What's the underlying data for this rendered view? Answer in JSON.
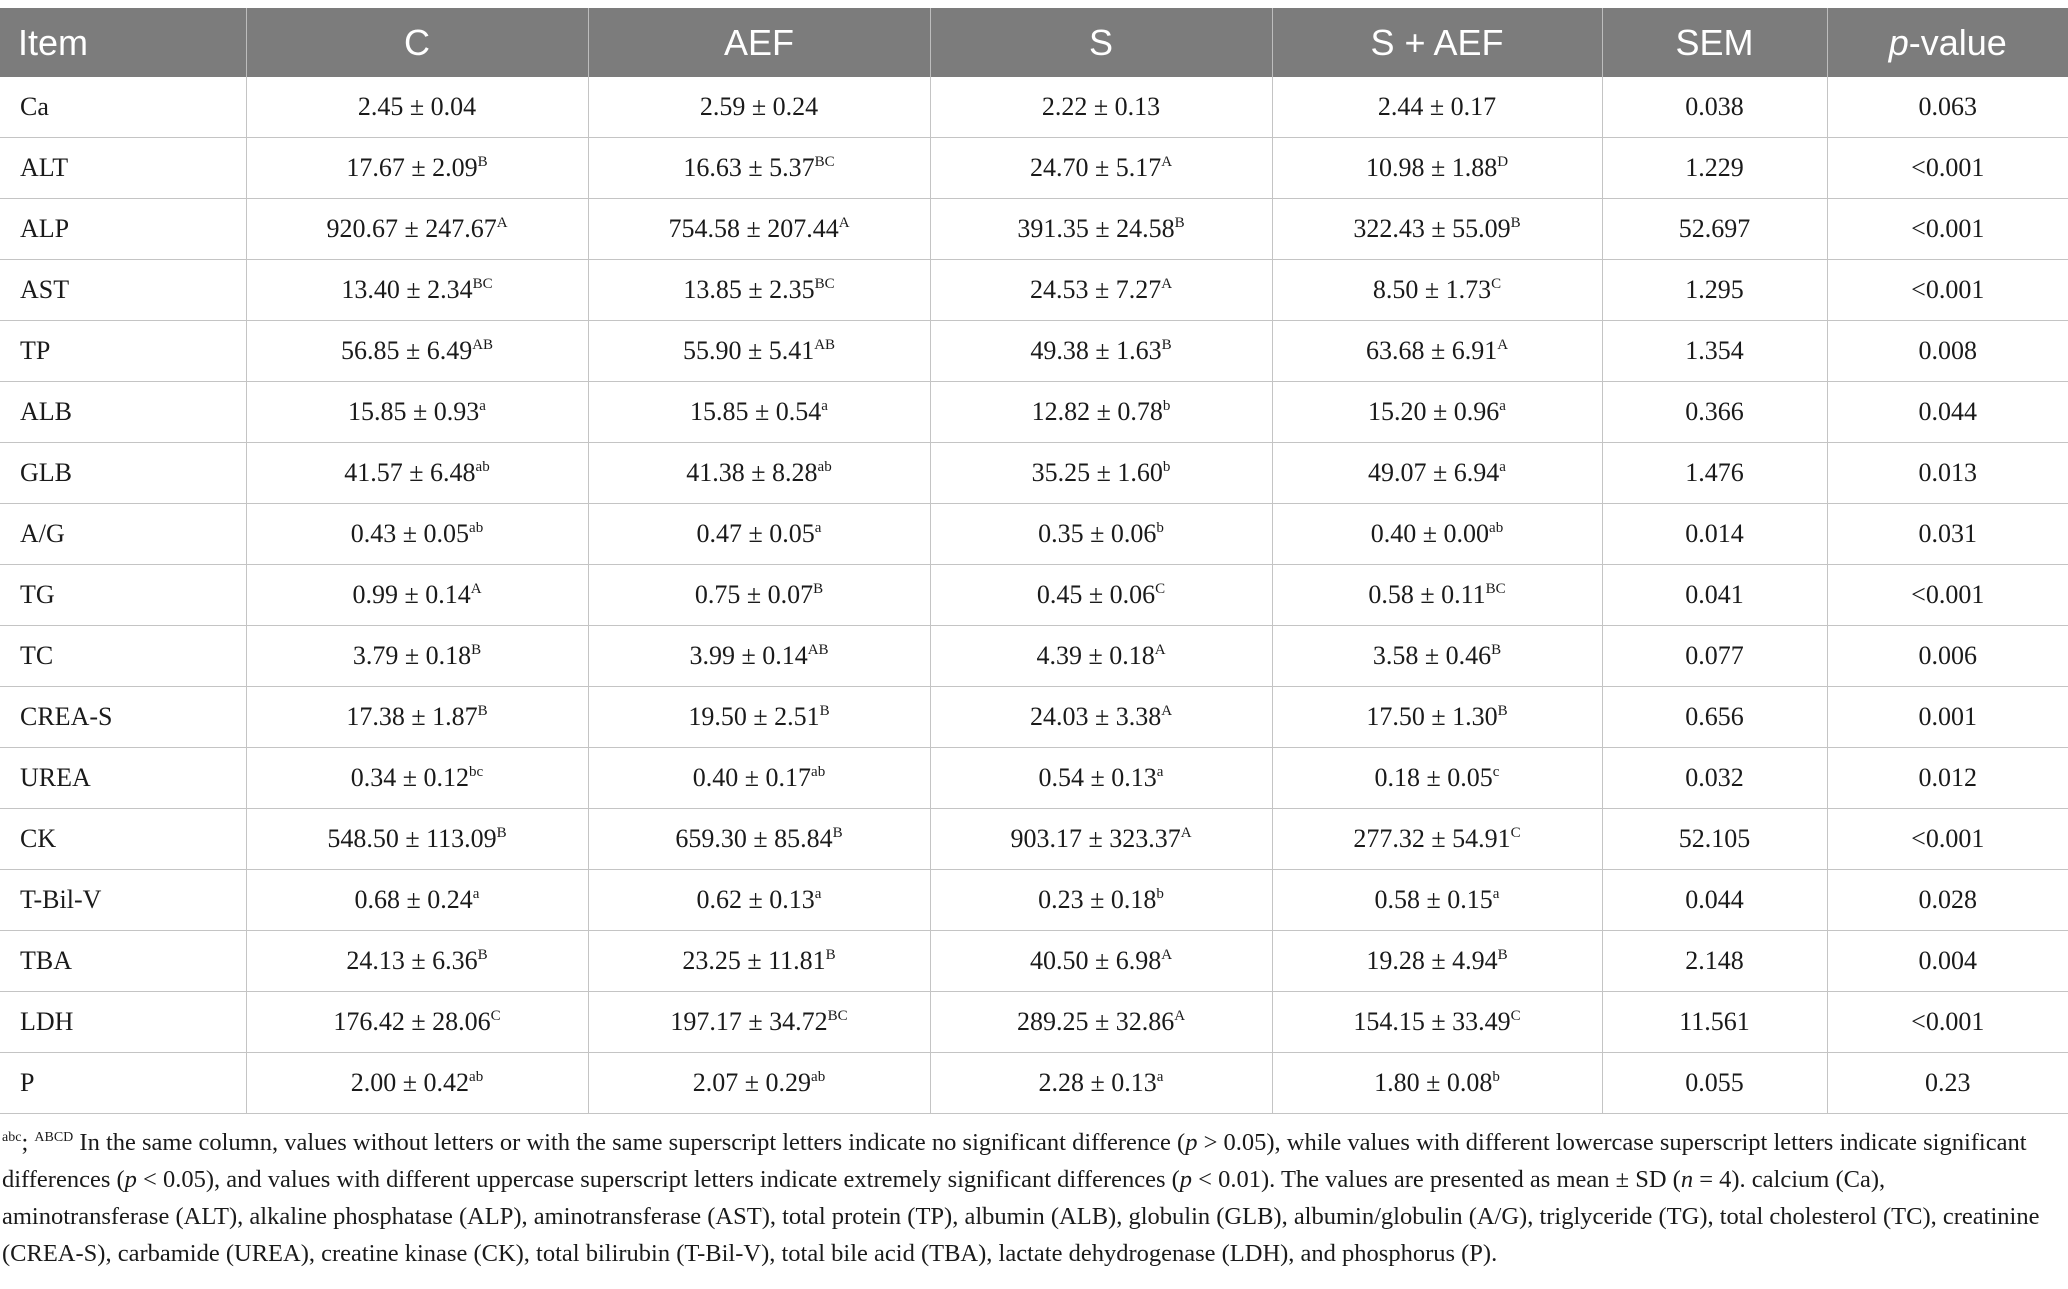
{
  "table": {
    "headers": [
      "Item",
      "C",
      "AEF",
      "S",
      "S + AEF",
      "SEM",
      "p-value"
    ],
    "rows": [
      {
        "item": "Ca",
        "c": [
          "2.45 ± 0.04",
          ""
        ],
        "aef": [
          "2.59 ± 0.24",
          ""
        ],
        "s": [
          "2.22 ± 0.13",
          ""
        ],
        "saef": [
          "2.44 ± 0.17",
          ""
        ],
        "sem": "0.038",
        "p": "0.063"
      },
      {
        "item": "ALT",
        "c": [
          "17.67 ± 2.09",
          "B"
        ],
        "aef": [
          "16.63 ± 5.37",
          "BC"
        ],
        "s": [
          "24.70 ± 5.17",
          "A"
        ],
        "saef": [
          "10.98 ± 1.88",
          "D"
        ],
        "sem": "1.229",
        "p": "<0.001"
      },
      {
        "item": "ALP",
        "c": [
          "920.67 ± 247.67",
          "A"
        ],
        "aef": [
          "754.58 ± 207.44",
          "A"
        ],
        "s": [
          "391.35 ± 24.58",
          "B"
        ],
        "saef": [
          "322.43 ± 55.09",
          "B"
        ],
        "sem": "52.697",
        "p": "<0.001"
      },
      {
        "item": "AST",
        "c": [
          "13.40 ± 2.34",
          "BC"
        ],
        "aef": [
          "13.85 ± 2.35",
          "BC"
        ],
        "s": [
          "24.53 ± 7.27",
          "A"
        ],
        "saef": [
          "8.50 ± 1.73",
          "C"
        ],
        "sem": "1.295",
        "p": "<0.001"
      },
      {
        "item": "TP",
        "c": [
          "56.85 ± 6.49",
          "AB"
        ],
        "aef": [
          "55.90 ± 5.41",
          "AB"
        ],
        "s": [
          "49.38 ± 1.63",
          "B"
        ],
        "saef": [
          "63.68 ± 6.91",
          "A"
        ],
        "sem": "1.354",
        "p": "0.008"
      },
      {
        "item": "ALB",
        "c": [
          "15.85 ± 0.93",
          "a"
        ],
        "aef": [
          "15.85 ± 0.54",
          "a"
        ],
        "s": [
          "12.82 ± 0.78",
          "b"
        ],
        "saef": [
          "15.20 ± 0.96",
          "a"
        ],
        "sem": "0.366",
        "p": "0.044"
      },
      {
        "item": "GLB",
        "c": [
          "41.57 ± 6.48",
          "ab"
        ],
        "aef": [
          "41.38 ± 8.28",
          "ab"
        ],
        "s": [
          "35.25 ± 1.60",
          "b"
        ],
        "saef": [
          "49.07 ± 6.94",
          "a"
        ],
        "sem": "1.476",
        "p": "0.013"
      },
      {
        "item": "A/G",
        "c": [
          "0.43 ± 0.05",
          "ab"
        ],
        "aef": [
          "0.47 ± 0.05",
          "a"
        ],
        "s": [
          "0.35 ± 0.06",
          "b"
        ],
        "saef": [
          "0.40 ± 0.00",
          "ab"
        ],
        "sem": "0.014",
        "p": "0.031"
      },
      {
        "item": "TG",
        "c": [
          "0.99 ± 0.14",
          "A"
        ],
        "aef": [
          "0.75 ± 0.07",
          "B"
        ],
        "s": [
          "0.45 ± 0.06",
          "C"
        ],
        "saef": [
          "0.58 ± 0.11",
          "BC"
        ],
        "sem": "0.041",
        "p": "<0.001"
      },
      {
        "item": "TC",
        "c": [
          "3.79 ± 0.18",
          "B"
        ],
        "aef": [
          "3.99 ± 0.14",
          "AB"
        ],
        "s": [
          "4.39 ± 0.18",
          "A"
        ],
        "saef": [
          "3.58 ± 0.46",
          "B"
        ],
        "sem": "0.077",
        "p": "0.006"
      },
      {
        "item": "CREA-S",
        "c": [
          "17.38 ± 1.87",
          "B"
        ],
        "aef": [
          "19.50 ± 2.51",
          "B"
        ],
        "s": [
          "24.03 ± 3.38",
          "A"
        ],
        "saef": [
          "17.50 ± 1.30",
          "B"
        ],
        "sem": "0.656",
        "p": "0.001"
      },
      {
        "item": "UREA",
        "c": [
          "0.34 ± 0.12",
          "bc"
        ],
        "aef": [
          "0.40 ± 0.17",
          "ab"
        ],
        "s": [
          "0.54 ± 0.13",
          "a"
        ],
        "saef": [
          "0.18 ± 0.05",
          "c"
        ],
        "sem": "0.032",
        "p": "0.012"
      },
      {
        "item": "CK",
        "c": [
          "548.50 ± 113.09",
          "B"
        ],
        "aef": [
          "659.30 ± 85.84",
          "B"
        ],
        "s": [
          "903.17 ± 323.37",
          "A"
        ],
        "saef": [
          "277.32 ± 54.91",
          "C"
        ],
        "sem": "52.105",
        "p": "<0.001"
      },
      {
        "item": "T-Bil-V",
        "c": [
          "0.68 ± 0.24",
          "a"
        ],
        "aef": [
          "0.62 ± 0.13",
          "a"
        ],
        "s": [
          "0.23 ± 0.18",
          "b"
        ],
        "saef": [
          "0.58 ± 0.15",
          "a"
        ],
        "sem": "0.044",
        "p": "0.028"
      },
      {
        "item": "TBA",
        "c": [
          "24.13 ± 6.36",
          "B"
        ],
        "aef": [
          "23.25 ± 11.81",
          "B"
        ],
        "s": [
          "40.50 ± 6.98",
          "A"
        ],
        "saef": [
          "19.28 ± 4.94",
          "B"
        ],
        "sem": "2.148",
        "p": "0.004"
      },
      {
        "item": "LDH",
        "c": [
          "176.42 ± 28.06",
          "C"
        ],
        "aef": [
          "197.17 ± 34.72",
          "BC"
        ],
        "s": [
          "289.25 ± 32.86",
          "A"
        ],
        "saef": [
          "154.15 ± 33.49",
          "C"
        ],
        "sem": "11.561",
        "p": "<0.001"
      },
      {
        "item": "P",
        "c": [
          "2.00 ± 0.42",
          "ab"
        ],
        "aef": [
          "2.07 ± 0.29",
          "ab"
        ],
        "s": [
          "2.28 ± 0.13",
          "a"
        ],
        "saef": [
          "1.80 ± 0.08",
          "b"
        ],
        "sem": "0.055",
        "p": "0.23"
      }
    ]
  },
  "footnote": {
    "sup1": "abc",
    "sep": "; ",
    "sup2": "ABCD",
    "text": " In the same column, values without letters or with the same superscript letters indicate no significant difference (p > 0.05), while values with different lowercase superscript letters indicate significant differences (p < 0.05), and values with different uppercase superscript letters indicate extremely significant differences (p < 0.01). The values are presented as mean ± SD (n = 4). calcium (Ca), aminotransferase (ALT), alkaline phosphatase (ALP), aminotransferase (AST), total protein (TP), albumin (ALB), globulin (GLB), albumin/globulin (A/G), triglyceride (TG), total cholesterol (TC), creatinine (CREA-S), carbamide (UREA), creatine kinase (CK), total bilirubin (T-Bil-V), total bile acid (TBA), lactate dehydrogenase (LDH), and phosphorus (P)."
  }
}
